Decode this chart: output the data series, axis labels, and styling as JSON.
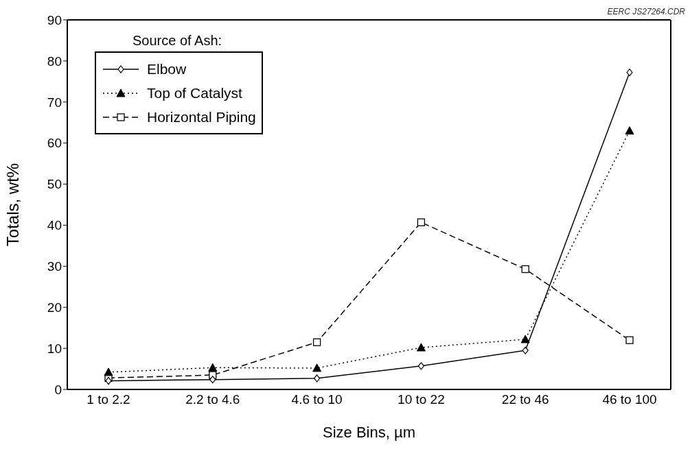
{
  "chart_data": {
    "type": "line",
    "xlabel": "Size Bins, µm",
    "ylabel": "Totals, wt%",
    "legend_title": "Source of Ash:",
    "annotations": [
      "EERC JS27264.CDR"
    ],
    "categories": [
      "1 to 2.2",
      "2.2 to 4.6",
      "4.6 to 10",
      "10 to 22",
      "22 to 46",
      "46 to 100"
    ],
    "series": [
      {
        "name": "Elbow",
        "color": "#000000",
        "marker": "diamond",
        "line_style": "solid",
        "values": [
          2.1,
          2.4,
          2.7,
          5.7,
          9.5,
          77.2
        ]
      },
      {
        "name": "Top of Catalyst",
        "color": "#000000",
        "marker": "triangle",
        "line_style": "dotted",
        "values": [
          4.2,
          5.3,
          5.2,
          10.2,
          12.2,
          63
        ]
      },
      {
        "name": "Horizontal Piping",
        "color": "#000000",
        "marker": "square",
        "line_style": "dashed",
        "values": [
          2.8,
          3.5,
          11.5,
          40.7,
          29.3,
          12
        ]
      }
    ],
    "ylim": [
      0,
      90
    ],
    "yticks": [
      0,
      10,
      20,
      30,
      40,
      50,
      60,
      70,
      80,
      90
    ],
    "grid": false,
    "legend": "top left"
  }
}
